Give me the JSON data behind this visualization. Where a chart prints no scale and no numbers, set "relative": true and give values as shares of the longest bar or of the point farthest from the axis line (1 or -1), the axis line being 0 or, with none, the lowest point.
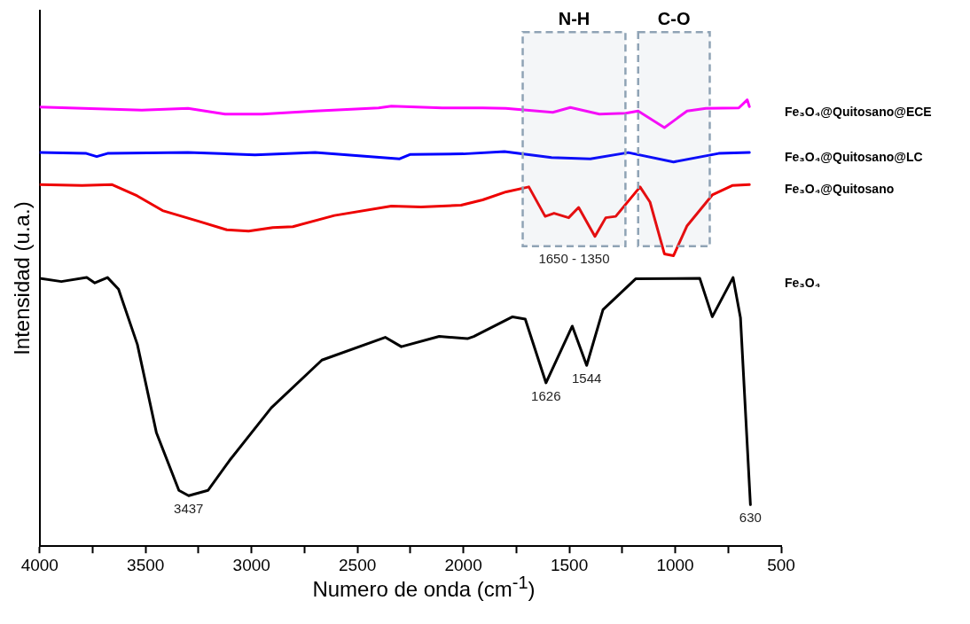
{
  "chart_data": {
    "type": "line",
    "xlabel": "Numero de onda (cm$^{-1}$)",
    "ylabel": "Intensidad (u.a.)",
    "relative": true,
    "legend": false,
    "grid": false,
    "marker": "none",
    "line_style": "solid",
    "xlim": [
      4000,
      500
    ],
    "xticks": [
      4000,
      {
        "value": 3750,
        "label": null
      },
      3500,
      {
        "value": 3250,
        "label": null
      },
      3000,
      {
        "value": 2750,
        "label": null
      },
      2500,
      {
        "value": 2250,
        "label": null
      },
      2000,
      {
        "value": 1750,
        "label": null
      },
      1500,
      {
        "value": 1250,
        "label": null
      },
      1000,
      {
        "value": 750,
        "label": null
      },
      500
    ],
    "series": [
      {
        "name": "Fe₃O₄@Quitosano@ECE",
        "color": "#ff00ff",
        "x": [
          4000,
          3518,
          3300,
          3125,
          2950,
          2700,
          2400,
          2340,
          2100,
          1909,
          1800,
          1578,
          1495,
          1358,
          1234,
          1175,
          1051,
          944,
          855,
          700,
          660,
          650
        ],
        "values": [
          0.984,
          0.977,
          0.981,
          0.968,
          0.968,
          0.975,
          0.982,
          0.986,
          0.982,
          0.982,
          0.981,
          0.972,
          0.983,
          0.968,
          0.97,
          0.975,
          0.938,
          0.975,
          0.981,
          0.982,
          1.0,
          0.985
        ]
      },
      {
        "name": "Fe₃O₄@Quitosano@LC",
        "color": "#0000ff",
        "x": [
          4000,
          3780,
          3731,
          3680,
          3300,
          2984,
          2700,
          2301,
          2250,
          2000,
          1806,
          1584,
          1401,
          1222,
          1008,
          795,
          650
        ],
        "values": [
          0.882,
          0.88,
          0.873,
          0.88,
          0.882,
          0.877,
          0.882,
          0.868,
          0.878,
          0.879,
          0.884,
          0.871,
          0.868,
          0.882,
          0.861,
          0.88,
          0.882
        ]
      },
      {
        "name": "Fe₃O₄@Quitosano",
        "color": "#ee0000",
        "x": [
          4000,
          3800,
          3658,
          3540,
          3420,
          3250,
          3117,
          3014,
          2900,
          2805,
          2609,
          2340,
          2200,
          2011,
          1909,
          1798,
          1691,
          1614,
          1572,
          1503,
          1456,
          1379,
          1328,
          1281,
          1166,
          1119,
          1051,
          1008,
          944,
          825,
          731,
          650
        ],
        "values": [
          0.81,
          0.808,
          0.81,
          0.785,
          0.752,
          0.728,
          0.709,
          0.706,
          0.714,
          0.716,
          0.741,
          0.762,
          0.76,
          0.764,
          0.776,
          0.794,
          0.805,
          0.739,
          0.746,
          0.736,
          0.759,
          0.694,
          0.736,
          0.739,
          0.805,
          0.771,
          0.655,
          0.651,
          0.718,
          0.787,
          0.808,
          0.81
        ]
      },
      {
        "name": "Fe₃O₄",
        "color": "#000000",
        "x": [
          4000,
          3898,
          3778,
          3740,
          3680,
          3628,
          3539,
          3449,
          3343,
          3297,
          3206,
          3104,
          2907,
          2668,
          2369,
          2293,
          2114,
          1981,
          1951,
          1768,
          1708,
          1610,
          1486,
          1418,
          1341,
          1187,
          884,
          825,
          727,
          692,
          645
        ],
        "values": [
          0.6,
          0.593,
          0.602,
          0.59,
          0.602,
          0.576,
          0.452,
          0.254,
          0.125,
          0.113,
          0.125,
          0.192,
          0.31,
          0.417,
          0.468,
          0.447,
          0.47,
          0.465,
          0.47,
          0.514,
          0.509,
          0.366,
          0.493,
          0.405,
          0.53,
          0.599,
          0.6,
          0.514,
          0.602,
          0.512,
          0.093
        ]
      }
    ],
    "bands": [
      {
        "axis": "x",
        "from": 1720,
        "to": 1235,
        "label": "N-H",
        "color": "#8fa3b5"
      },
      {
        "axis": "x",
        "from": 1175,
        "to": 837,
        "label": "C-O",
        "color": "#8fa3b5"
      }
    ],
    "annotations": [
      "1650 - 1350",
      {
        "text": "3437",
        "x": 3297,
        "y": 0.113
      },
      {
        "text": "1626",
        "x": 1610,
        "y": 0.366
      },
      {
        "text": "1544",
        "x": 1418,
        "y": 0.405
      },
      {
        "text": "630",
        "x": 645,
        "y": 0.093
      }
    ]
  }
}
